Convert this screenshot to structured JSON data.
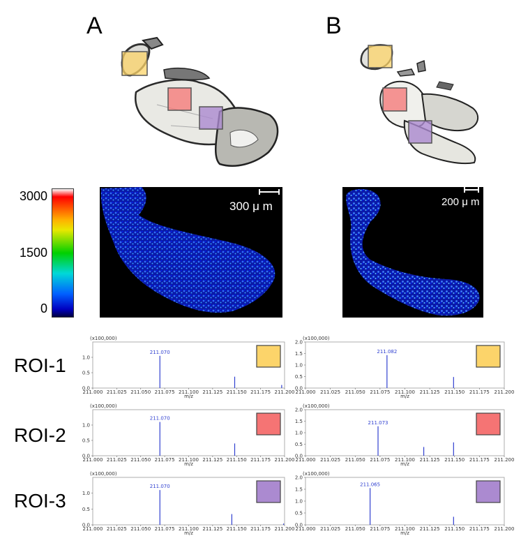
{
  "panels": [
    {
      "letter": "A",
      "scale": "300 μ m"
    },
    {
      "letter": "B",
      "scale": "200 μ m"
    }
  ],
  "colorbar": {
    "max": "3000",
    "mid": "1500",
    "min": "0"
  },
  "roi_colors": {
    "ROI-1": "#fcd46a",
    "ROI-2": "#f57474",
    "ROI-3": "#ab8ad0"
  },
  "rows": [
    {
      "label": "ROI-1",
      "color": "#fcd46a"
    },
    {
      "label": "ROI-2",
      "color": "#f57474"
    },
    {
      "label": "ROI-3",
      "color": "#ab8ad0"
    }
  ],
  "chart_data": [
    {
      "type": "bar",
      "panel": "A",
      "roi": "ROI-1",
      "xlabel": "m/z",
      "multiplier": "(x100,000)",
      "xlim": [
        211.0,
        211.2
      ],
      "ylim": [
        0,
        1.5
      ],
      "xticks": [
        "211.000",
        "211.025",
        "211.050",
        "211.075",
        "211.100",
        "211.125",
        "211.150",
        "211.175",
        "211.200"
      ],
      "yticks": [
        "0.0",
        "0.5",
        "1.0"
      ],
      "peaks": [
        {
          "x": 211.07,
          "y": 1.05,
          "label": "211.070"
        },
        {
          "x": 211.148,
          "y": 0.37
        },
        {
          "x": 211.197,
          "y": 0.1
        }
      ]
    },
    {
      "type": "bar",
      "panel": "B",
      "roi": "ROI-1",
      "xlabel": "m/z",
      "multiplier": "(x100,000)",
      "xlim": [
        211.0,
        211.2
      ],
      "ylim": [
        0,
        2.0
      ],
      "xticks": [
        "211.000",
        "211.025",
        "211.050",
        "211.075",
        "211.100",
        "211.125",
        "211.150",
        "211.175",
        "211.200"
      ],
      "yticks": [
        "0.0",
        "0.5",
        "1.0",
        "1.5",
        "2.0"
      ],
      "peaks": [
        {
          "x": 211.082,
          "y": 1.43,
          "label": "211.082"
        },
        {
          "x": 211.149,
          "y": 0.48
        }
      ]
    },
    {
      "type": "bar",
      "panel": "A",
      "roi": "ROI-2",
      "xlabel": "m/z",
      "multiplier": "(x100,000)",
      "xlim": [
        211.0,
        211.2
      ],
      "ylim": [
        0,
        1.5
      ],
      "xticks": [
        "211.000",
        "211.025",
        "211.050",
        "211.075",
        "211.100",
        "211.125",
        "211.150",
        "211.175",
        "211.200"
      ],
      "yticks": [
        "0.0",
        "0.5",
        "1.0"
      ],
      "peaks": [
        {
          "x": 211.07,
          "y": 1.1,
          "label": "211.070"
        },
        {
          "x": 211.148,
          "y": 0.4
        }
      ]
    },
    {
      "type": "bar",
      "panel": "B",
      "roi": "ROI-2",
      "xlabel": "m/z",
      "multiplier": "(x100,000)",
      "xlim": [
        211.0,
        211.2
      ],
      "ylim": [
        0,
        2.0
      ],
      "xticks": [
        "211.000",
        "211.025",
        "211.050",
        "211.075",
        "211.100",
        "211.125",
        "211.150",
        "211.175",
        "211.200"
      ],
      "yticks": [
        "0.0",
        "0.5",
        "1.0",
        "1.5",
        "2.0"
      ],
      "peaks": [
        {
          "x": 211.073,
          "y": 1.28,
          "label": "211.073"
        },
        {
          "x": 211.119,
          "y": 0.38
        },
        {
          "x": 211.149,
          "y": 0.58
        }
      ]
    },
    {
      "type": "bar",
      "panel": "A",
      "roi": "ROI-3",
      "xlabel": "m/z",
      "multiplier": "(x100,000)",
      "xlim": [
        211.0,
        211.2
      ],
      "ylim": [
        0,
        1.5
      ],
      "xticks": [
        "211.000",
        "211.025",
        "211.050",
        "211.075",
        "211.100",
        "211.125",
        "211.150",
        "211.175",
        "211.200"
      ],
      "yticks": [
        "0.0",
        "0.5",
        "1.0"
      ],
      "peaks": [
        {
          "x": 211.07,
          "y": 1.1,
          "label": "211.070"
        },
        {
          "x": 211.145,
          "y": 0.34
        },
        {
          "x": 211.199,
          "y": 0.04
        }
      ]
    },
    {
      "type": "bar",
      "panel": "B",
      "roi": "ROI-3",
      "xlabel": "m/z",
      "multiplier": "(x100,000)",
      "xlim": [
        211.0,
        211.2
      ],
      "ylim": [
        0,
        2.0
      ],
      "xticks": [
        "211.000",
        "211.025",
        "211.050",
        "211.075",
        "211.100",
        "211.125",
        "211.150",
        "211.175",
        "211.200"
      ],
      "yticks": [
        "0.0",
        "0.5",
        "1.0",
        "1.5",
        "2.0"
      ],
      "peaks": [
        {
          "x": 211.065,
          "y": 1.55,
          "label": "211.065"
        },
        {
          "x": 211.149,
          "y": 0.34
        }
      ]
    }
  ]
}
